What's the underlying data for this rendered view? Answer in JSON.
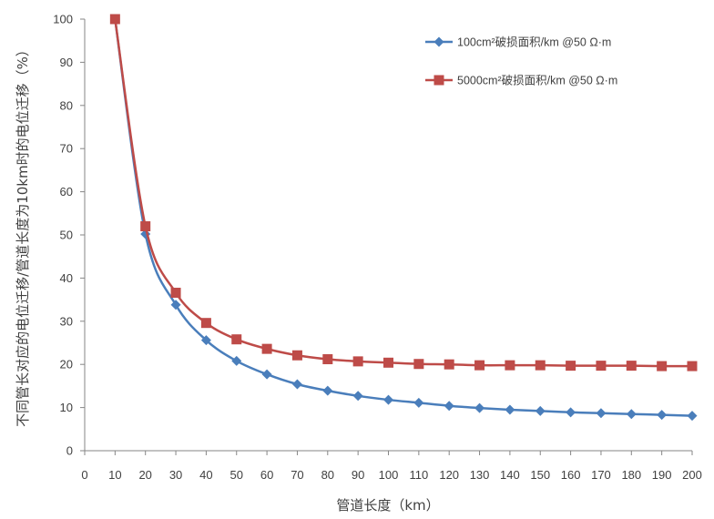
{
  "chart_data": {
    "type": "line",
    "xlabel": "管道长度（km）",
    "ylabel": "不同管长对应的电位迁移/管道长度为10km时的电位迁移（%）",
    "xlim": [
      0,
      200
    ],
    "ylim": [
      0,
      100
    ],
    "xticks": [
      0,
      10,
      20,
      30,
      40,
      50,
      60,
      70,
      80,
      90,
      100,
      110,
      120,
      130,
      140,
      150,
      160,
      170,
      180,
      190,
      200
    ],
    "yticks": [
      0,
      10,
      20,
      30,
      40,
      50,
      60,
      70,
      80,
      90,
      100
    ],
    "grid": false,
    "legend_position": "top-right",
    "x": [
      10,
      20,
      30,
      40,
      50,
      60,
      70,
      80,
      90,
      100,
      110,
      120,
      130,
      140,
      150,
      160,
      170,
      180,
      190,
      200
    ],
    "series": [
      {
        "name": "100cm²破损面积/km @50 Ω·m",
        "color": "#4a7ebb",
        "marker": "diamond",
        "values": [
          100,
          50.2,
          33.8,
          25.6,
          20.8,
          17.7,
          15.4,
          13.9,
          12.7,
          11.8,
          11.1,
          10.4,
          9.9,
          9.5,
          9.2,
          8.9,
          8.7,
          8.5,
          8.3,
          8.1
        ]
      },
      {
        "name": "5000cm²破损面积/km @50 Ω·m",
        "color": "#be4b48",
        "marker": "square",
        "values": [
          100,
          52,
          36.6,
          29.6,
          25.8,
          23.6,
          22.1,
          21.2,
          20.7,
          20.4,
          20.1,
          20.0,
          19.8,
          19.8,
          19.8,
          19.7,
          19.7,
          19.7,
          19.6,
          19.6
        ]
      }
    ]
  }
}
